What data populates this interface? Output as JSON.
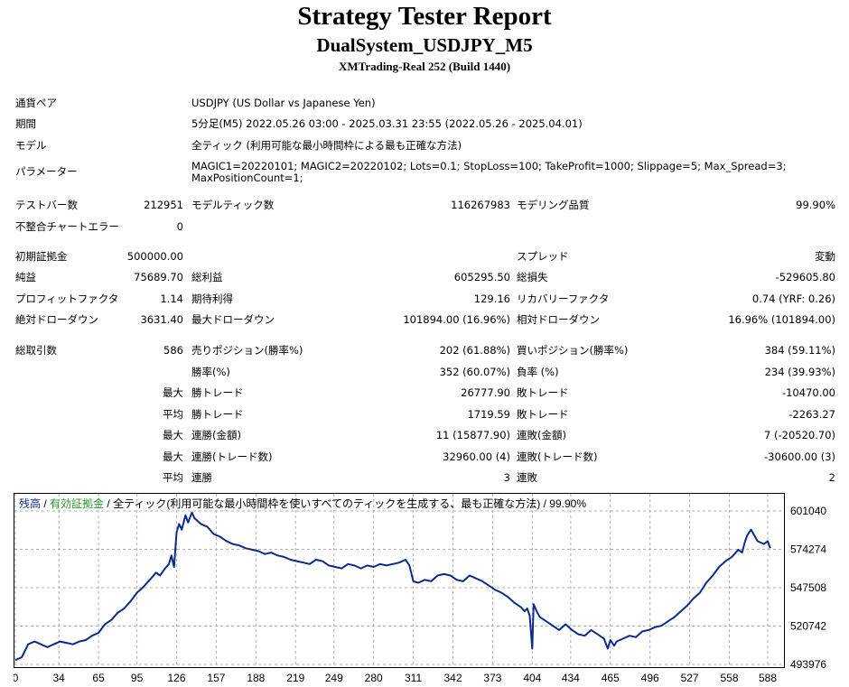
{
  "header": {
    "title": "Strategy Tester Report",
    "subtitle": "DualSystem_USDJPY_M5",
    "server": "XMTrading-Real 252 (Build 1440)"
  },
  "info": [
    {
      "label": "通貨ペア",
      "value": "USDJPY (US Dollar vs Japanese Yen)"
    },
    {
      "label": "期間",
      "value": "5分足(M5) 2022.05.26 03:00 - 2025.03.31 23:55 (2022.05.26 - 2025.04.01)"
    },
    {
      "label": "モデル",
      "value": "全ティック (利用可能な最小時間枠による最も正確な方法)"
    },
    {
      "label": "パラメーター",
      "value_line1": "MAGIC1=20220101; MAGIC2=20220102; Lots=0.1; StopLoss=100; TakeProfit=1000; Slippage=5; Max_Spread=3;",
      "value_line2": "MaxPositionCount=1;"
    }
  ],
  "stats": {
    "bars_label": "テストバー数",
    "bars_value": "212951",
    "ticks_label": "モデルティック数",
    "ticks_value": "116267983",
    "quality_label": "モデリング品質",
    "quality_value": "99.90%",
    "mismatch_label": "不整合チャートエラー",
    "mismatch_value": "0",
    "deposit_label": "初期証拠金",
    "deposit_value": "500000.00",
    "spread_label": "スプレッド",
    "spread_value": "変動",
    "net_label": "純益",
    "net_value": "75689.70",
    "gross_profit_label": "総利益",
    "gross_profit_value": "605295.50",
    "gross_loss_label": "総損失",
    "gross_loss_value": "-529605.80",
    "pf_label": "プロフィットファクタ",
    "pf_value": "1.14",
    "payoff_label": "期待利得",
    "payoff_value": "129.16",
    "rf_label": "リカバリーファクタ",
    "rf_value": "0.74 (YRF: 0.26)",
    "abs_dd_label": "絶対ドローダウン",
    "abs_dd_value": "3631.40",
    "max_dd_label": "最大ドローダウン",
    "max_dd_value": "101894.00 (16.96%)",
    "rel_dd_label": "相対ドローダウン",
    "rel_dd_value": "16.96% (101894.00)",
    "trades_label": "総取引数",
    "trades_value": "586",
    "short_label": "売りポジション(勝率%)",
    "short_value": "202 (61.88%)",
    "long_label": "買いポジション(勝率%)",
    "long_value": "384 (59.11%)",
    "win_label": "勝率(%)",
    "win_value": "352 (60.07%)",
    "loss_label": "負率 (%)",
    "loss_value": "234 (39.93%)",
    "rows": [
      {
        "prefix": "最大",
        "a_label": "勝トレード",
        "a_value": "26777.90",
        "b_label": "敗トレード",
        "b_value": "-10470.00"
      },
      {
        "prefix": "平均",
        "a_label": "勝トレード",
        "a_value": "1719.59",
        "b_label": "敗トレード",
        "b_value": "-2263.27"
      },
      {
        "prefix": "最大",
        "a_label": "連勝(金額)",
        "a_value": "11 (15877.90)",
        "b_label": "連敗(金額)",
        "b_value": "7 (-20520.70)"
      },
      {
        "prefix": "最大",
        "a_label": "連勝(トレード数)",
        "a_value": "32960.00 (4)",
        "b_label": "連敗(トレード数)",
        "b_value": "-30600.00 (3)"
      },
      {
        "prefix": "平均",
        "a_label": "連勝",
        "a_value": "3",
        "b_label": "連敗",
        "b_value": "2"
      }
    ]
  },
  "chart_legend": {
    "balance": "残高",
    "sep1": " / ",
    "equity": "有効証拠金",
    "sep2": " / ",
    "rest": "全ティック(利用可能な最小時間枠を使いすべてのティックを生成する、最も正確な方法) / 99.90%"
  },
  "chart_data": {
    "type": "line",
    "title": "",
    "xlabel": "",
    "ylabel": "",
    "x_ticks": [
      0,
      34,
      65,
      95,
      126,
      157,
      188,
      219,
      249,
      280,
      311,
      342,
      373,
      404,
      434,
      465,
      496,
      527,
      558,
      588
    ],
    "y_ticks": [
      601040,
      574274,
      547508,
      520742,
      493976
    ],
    "xlim": [
      0,
      600
    ],
    "ylim": [
      493976,
      601040
    ],
    "grid": true,
    "colors": {
      "balance": "#0c2a90",
      "equity": "#2a9a2a"
    },
    "series": [
      {
        "name": "残高",
        "x": [
          0,
          5,
          10,
          15,
          20,
          25,
          30,
          35,
          40,
          45,
          50,
          55,
          60,
          65,
          70,
          75,
          80,
          85,
          90,
          95,
          100,
          105,
          110,
          113,
          117,
          120,
          122,
          124,
          126,
          128,
          130,
          133,
          135,
          138,
          140,
          145,
          150,
          155,
          160,
          165,
          170,
          175,
          180,
          185,
          190,
          195,
          200,
          205,
          210,
          215,
          220,
          225,
          230,
          235,
          240,
          245,
          250,
          255,
          260,
          265,
          270,
          275,
          280,
          285,
          290,
          295,
          300,
          305,
          308,
          311,
          315,
          320,
          325,
          330,
          335,
          340,
          345,
          350,
          355,
          360,
          365,
          370,
          375,
          380,
          385,
          390,
          395,
          398,
          400,
          402,
          404,
          405,
          408,
          410,
          415,
          420,
          425,
          430,
          435,
          440,
          445,
          450,
          455,
          460,
          463,
          465,
          468,
          470,
          475,
          480,
          485,
          490,
          495,
          500,
          505,
          510,
          515,
          520,
          525,
          530,
          535,
          540,
          545,
          550,
          555,
          560,
          565,
          568,
          570,
          572,
          575,
          580,
          585,
          588,
          590
        ],
        "y": [
          497000,
          499000,
          508000,
          510000,
          508000,
          506000,
          508000,
          510000,
          509000,
          508000,
          510000,
          511000,
          514000,
          516000,
          522000,
          525000,
          530000,
          533000,
          538000,
          544000,
          548000,
          553000,
          558000,
          556000,
          561000,
          564000,
          570000,
          562000,
          586000,
          592000,
          588000,
          598000,
          593000,
          600000,
          596000,
          592000,
          590000,
          585000,
          583000,
          580000,
          578000,
          577000,
          575000,
          574000,
          573000,
          571000,
          572000,
          570000,
          569000,
          567000,
          566000,
          565000,
          564000,
          567000,
          566000,
          563000,
          562000,
          561000,
          564000,
          563000,
          561000,
          563000,
          562000,
          564000,
          563000,
          564000,
          565000,
          567000,
          563000,
          552000,
          551000,
          553000,
          552000,
          556000,
          557000,
          556000,
          553000,
          552000,
          556000,
          554000,
          552000,
          549000,
          546000,
          544000,
          541000,
          537000,
          534000,
          531000,
          533000,
          528000,
          505000,
          536000,
          530000,
          527000,
          524000,
          521000,
          518000,
          522000,
          518000,
          515000,
          514000,
          518000,
          515000,
          512000,
          505000,
          511000,
          507000,
          510000,
          512000,
          514000,
          513000,
          517000,
          518000,
          520000,
          521000,
          524000,
          527000,
          531000,
          535000,
          540000,
          544000,
          551000,
          556000,
          562000,
          566000,
          569000,
          574000,
          572000,
          579000,
          584000,
          588000,
          580000,
          578000,
          580000,
          575000
        ]
      }
    ]
  }
}
